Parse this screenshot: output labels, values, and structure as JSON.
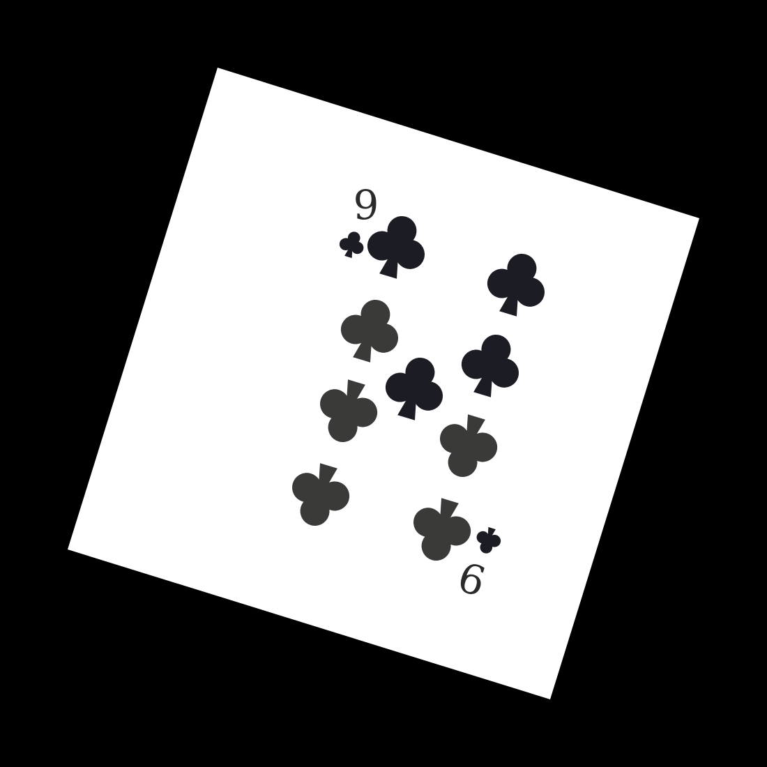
{
  "card": {
    "rank": "9",
    "suit": "clubs",
    "suit_icon": "club-icon",
    "card_color": "#ffffff",
    "ink_color": "#1c1c24",
    "ink_color_light": "#3a3a38",
    "rank_color": "#2a2a2a"
  },
  "background": {
    "color": "#000000"
  }
}
